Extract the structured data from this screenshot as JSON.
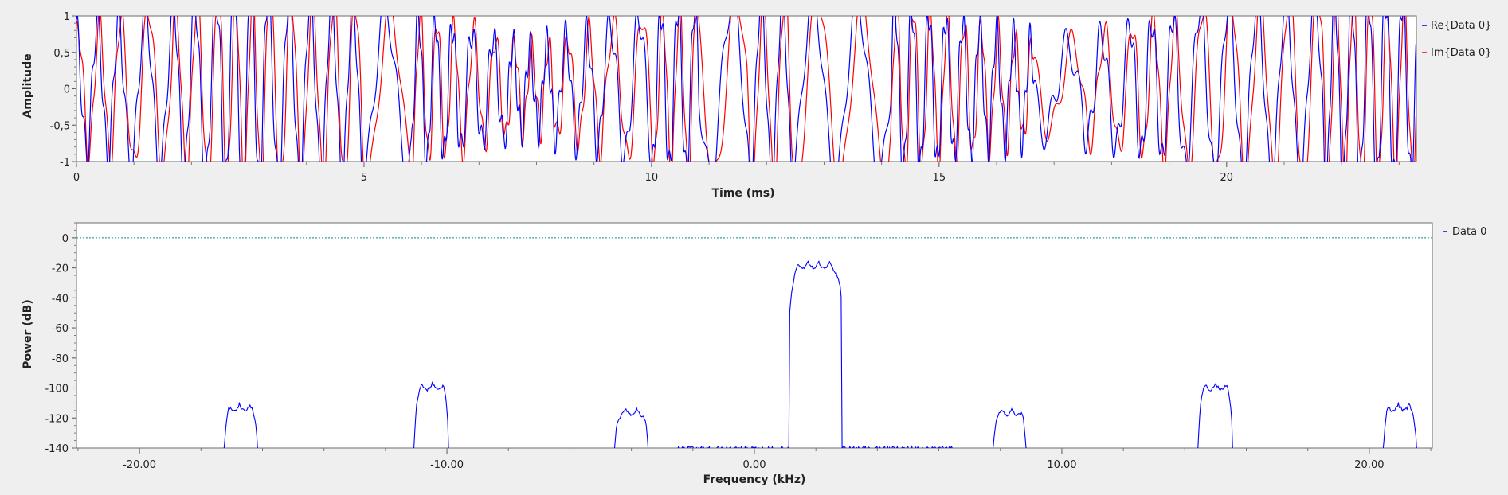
{
  "chart_data": [
    {
      "type": "line",
      "xlabel": "Time (ms)",
      "ylabel": "Amplitude",
      "xlim": [
        0,
        23.3
      ],
      "ylim": [
        -1,
        1
      ],
      "x_ticks": [
        0,
        5,
        10,
        15,
        20
      ],
      "x_tick_labels": [
        "0",
        "5",
        "10",
        "15",
        "20"
      ],
      "y_ticks": [
        1,
        0.5,
        0,
        -0.5,
        -1
      ],
      "y_tick_labels": [
        "1",
        "0,5",
        "0",
        "-0,5",
        "-1"
      ],
      "grid": false,
      "legend_position": "right",
      "series": [
        {
          "name": "Re{Data 0}",
          "color": "#0000ff"
        },
        {
          "name": "Im{Data 0}",
          "color": "#ff0000"
        }
      ]
    },
    {
      "type": "line",
      "xlabel": "Frequency (kHz)",
      "ylabel": "Power (dB)",
      "xlim": [
        -22.05,
        22.05
      ],
      "ylim": [
        -140,
        10
      ],
      "x_ticks": [
        -20,
        -10,
        0,
        10,
        20
      ],
      "x_tick_labels": [
        "-20.00",
        "-10.00",
        "0.00",
        "10.00",
        "20.00"
      ],
      "y_ticks": [
        0,
        -20,
        -40,
        -60,
        -80,
        -100,
        -120,
        -140
      ],
      "y_tick_labels": [
        "0",
        "-20",
        "-40",
        "-60",
        "-80",
        "-100",
        "-120",
        "-140"
      ],
      "grid": false,
      "legend_position": "right",
      "series": [
        {
          "name": "Data 0",
          "color": "#0000ff"
        }
      ],
      "reference_line": {
        "y": 0,
        "color": "#008b8b",
        "style": "dotted"
      },
      "peaks": [
        {
          "x": 2.0,
          "y": -15
        },
        {
          "x": -10.5,
          "y": -96
        },
        {
          "x": 15.0,
          "y": -96
        },
        {
          "x": -16.7,
          "y": -110
        },
        {
          "x": 21.0,
          "y": -110
        },
        {
          "x": -4.0,
          "y": -113
        },
        {
          "x": 8.3,
          "y": -113
        }
      ]
    }
  ]
}
